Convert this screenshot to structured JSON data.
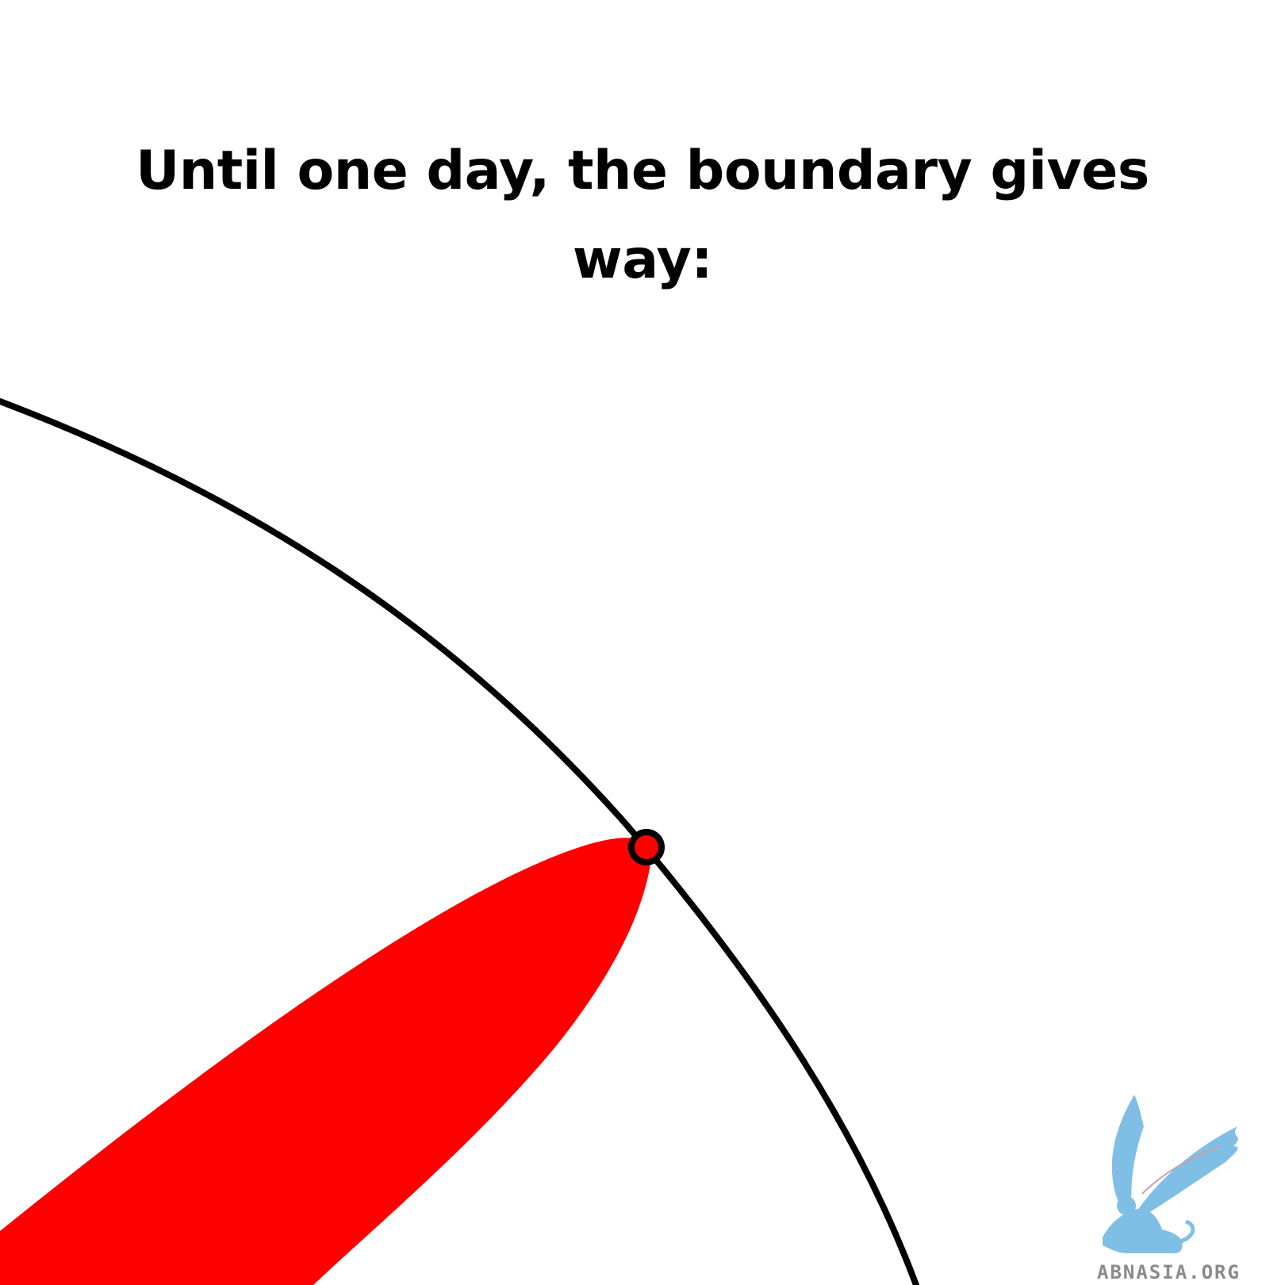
{
  "caption": {
    "text": "Until one day, the boundary gives way:"
  },
  "diagram": {
    "boundary_color": "#000000",
    "breach_color": "#ff0000"
  },
  "watermark": {
    "text": "ABNASIA.ORG",
    "color": "#7fbfe6"
  }
}
